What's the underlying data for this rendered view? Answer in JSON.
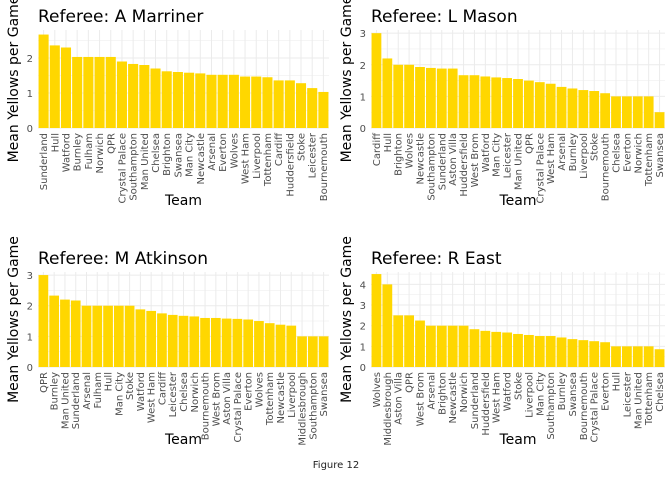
{
  "figure_caption": "Figure 12",
  "bar_color": "#FFD700",
  "grid_color": "#EBEBEB",
  "chart_data": [
    {
      "type": "bar",
      "title": "Referee: A Marriner",
      "xlabel": "Team",
      "ylabel": "Mean Yellows per Game",
      "ylim": [
        0,
        2.8
      ],
      "yticks": [
        0,
        1,
        2
      ],
      "grid": true,
      "categories": [
        "Sunderland",
        "Hull",
        "Watford",
        "Burnley",
        "Fulham",
        "Norwich",
        "QPR",
        "Crystal Palace",
        "Southampton",
        "Man United",
        "Chelsea",
        "Brighton",
        "Swansea",
        "Man City",
        "Newcastle",
        "Arsenal",
        "Everton",
        "Wolves",
        "West Ham",
        "Liverpool",
        "Tottenham",
        "Cardiff",
        "Huddersfield",
        "Stoke",
        "Leicester",
        "Bournemouth"
      ],
      "values": [
        2.67,
        2.36,
        2.3,
        2.03,
        2.03,
        2.03,
        2.03,
        1.9,
        1.83,
        1.8,
        1.7,
        1.62,
        1.6,
        1.58,
        1.56,
        1.52,
        1.52,
        1.52,
        1.47,
        1.47,
        1.45,
        1.36,
        1.36,
        1.28,
        1.14,
        1.03
      ]
    },
    {
      "type": "bar",
      "title": "Referee: L Mason",
      "xlabel": "Team",
      "ylabel": "Mean Yellows per Game",
      "ylim": [
        0,
        3.1
      ],
      "yticks": [
        0,
        1,
        2,
        3
      ],
      "grid": true,
      "categories": [
        "Cardiff",
        "Hull",
        "Brighton",
        "Wolves",
        "Newcastle",
        "Southampton",
        "Sunderland",
        "Aston Villa",
        "Huddersfield",
        "West Brom",
        "Watford",
        "Man City",
        "Leicester",
        "Man United",
        "QPR",
        "Crystal Palace",
        "West Ham",
        "Arsenal",
        "Burnley",
        "Liverpool",
        "Stoke",
        "Bournemouth",
        "Chelsea",
        "Everton",
        "Norwich",
        "Tottenham",
        "Swansea"
      ],
      "values": [
        3.0,
        2.2,
        2.0,
        2.0,
        1.93,
        1.9,
        1.88,
        1.88,
        1.67,
        1.67,
        1.63,
        1.6,
        1.58,
        1.55,
        1.5,
        1.45,
        1.4,
        1.3,
        1.25,
        1.2,
        1.17,
        1.1,
        1.0,
        1.0,
        1.0,
        1.0,
        0.5
      ]
    },
    {
      "type": "bar",
      "title": "Referee: M Atkinson",
      "xlabel": "Team",
      "ylabel": "Mean Yellows per Game",
      "ylim": [
        0,
        3.1
      ],
      "yticks": [
        0,
        1,
        2,
        3
      ],
      "grid": true,
      "categories": [
        "QPR",
        "Burnley",
        "Man United",
        "Sunderland",
        "Arsenal",
        "Fulham",
        "Hull",
        "Man City",
        "Stoke",
        "Watford",
        "West Ham",
        "Cardiff",
        "Leicester",
        "Chelsea",
        "Norwich",
        "Bournemouth",
        "West Brom",
        "Aston Villa",
        "Crystal Palace",
        "Everton",
        "Wolves",
        "Tottenham",
        "Newcastle",
        "Liverpool",
        "Middlesbrough",
        "Southampton",
        "Swansea"
      ],
      "values": [
        3.0,
        2.33,
        2.2,
        2.17,
        2.0,
        2.0,
        2.0,
        2.0,
        2.0,
        1.88,
        1.83,
        1.75,
        1.7,
        1.67,
        1.65,
        1.6,
        1.6,
        1.58,
        1.57,
        1.55,
        1.5,
        1.43,
        1.38,
        1.35,
        1.0,
        1.0,
        1.0
      ]
    },
    {
      "type": "bar",
      "title": "Referee: R East",
      "xlabel": "Team",
      "ylabel": "Mean Yellows per Game",
      "ylim": [
        0,
        4.6
      ],
      "yticks": [
        0,
        1,
        2,
        3,
        4
      ],
      "grid": true,
      "categories": [
        "Wolves",
        "Middlesbrough",
        "Aston Villa",
        "QPR",
        "West Brom",
        "Arsenal",
        "Brighton",
        "Newcastle",
        "Norwich",
        "Sunderland",
        "Huddersfield",
        "West Ham",
        "Watford",
        "Stoke",
        "Liverpool",
        "Man City",
        "Southampton",
        "Burnley",
        "Swansea",
        "Bournemouth",
        "Crystal Palace",
        "Everton",
        "Hull",
        "Leicester",
        "Man United",
        "Tottenham",
        "Chelsea"
      ],
      "values": [
        4.5,
        4.0,
        2.5,
        2.5,
        2.25,
        2.0,
        2.0,
        2.0,
        2.0,
        1.83,
        1.75,
        1.7,
        1.67,
        1.6,
        1.55,
        1.5,
        1.5,
        1.43,
        1.35,
        1.3,
        1.25,
        1.2,
        1.0,
        1.0,
        1.0,
        1.0,
        0.86
      ]
    }
  ]
}
